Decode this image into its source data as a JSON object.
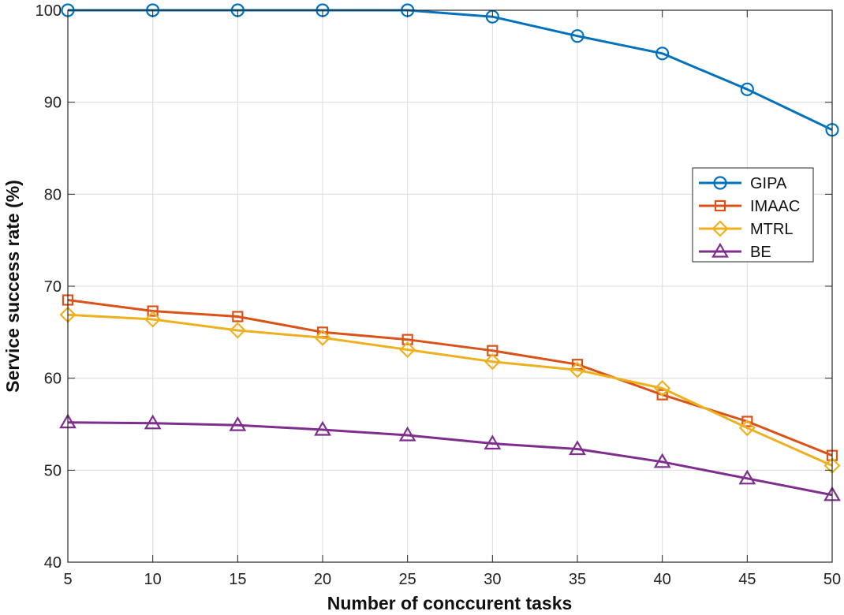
{
  "chart_data": {
    "type": "line",
    "title": "",
    "xlabel": "Number of conccurent tasks",
    "ylabel": "Service success rate (%)",
    "x": [
      5,
      10,
      15,
      20,
      25,
      30,
      35,
      40,
      45,
      50
    ],
    "xlim": [
      5,
      50
    ],
    "ylim": [
      40,
      100
    ],
    "xticks": [
      "5",
      "10",
      "15",
      "20",
      "25",
      "30",
      "35",
      "40",
      "45",
      "50"
    ],
    "yticks": [
      "40",
      "50",
      "60",
      "70",
      "80",
      "90",
      "100"
    ],
    "grid": true,
    "legend_position": "right",
    "series": [
      {
        "name": "GIPA",
        "color": "#0072BD",
        "marker": "circle",
        "values": [
          100,
          100,
          100,
          100,
          100,
          99.3,
          97.2,
          95.3,
          91.4,
          87.0
        ]
      },
      {
        "name": "IMAAC",
        "color": "#D95319",
        "marker": "square",
        "values": [
          68.5,
          67.3,
          66.7,
          65.0,
          64.2,
          63.0,
          61.5,
          58.2,
          55.3,
          51.6
        ]
      },
      {
        "name": "MTRL",
        "color": "#EDB120",
        "marker": "diamond",
        "values": [
          66.9,
          66.4,
          65.2,
          64.4,
          63.1,
          61.8,
          60.9,
          58.9,
          54.6,
          50.5
        ]
      },
      {
        "name": "BE",
        "color": "#7E2F8E",
        "marker": "triangle",
        "values": [
          55.2,
          55.1,
          54.9,
          54.4,
          53.8,
          52.9,
          52.3,
          50.9,
          49.1,
          47.3
        ]
      }
    ]
  }
}
